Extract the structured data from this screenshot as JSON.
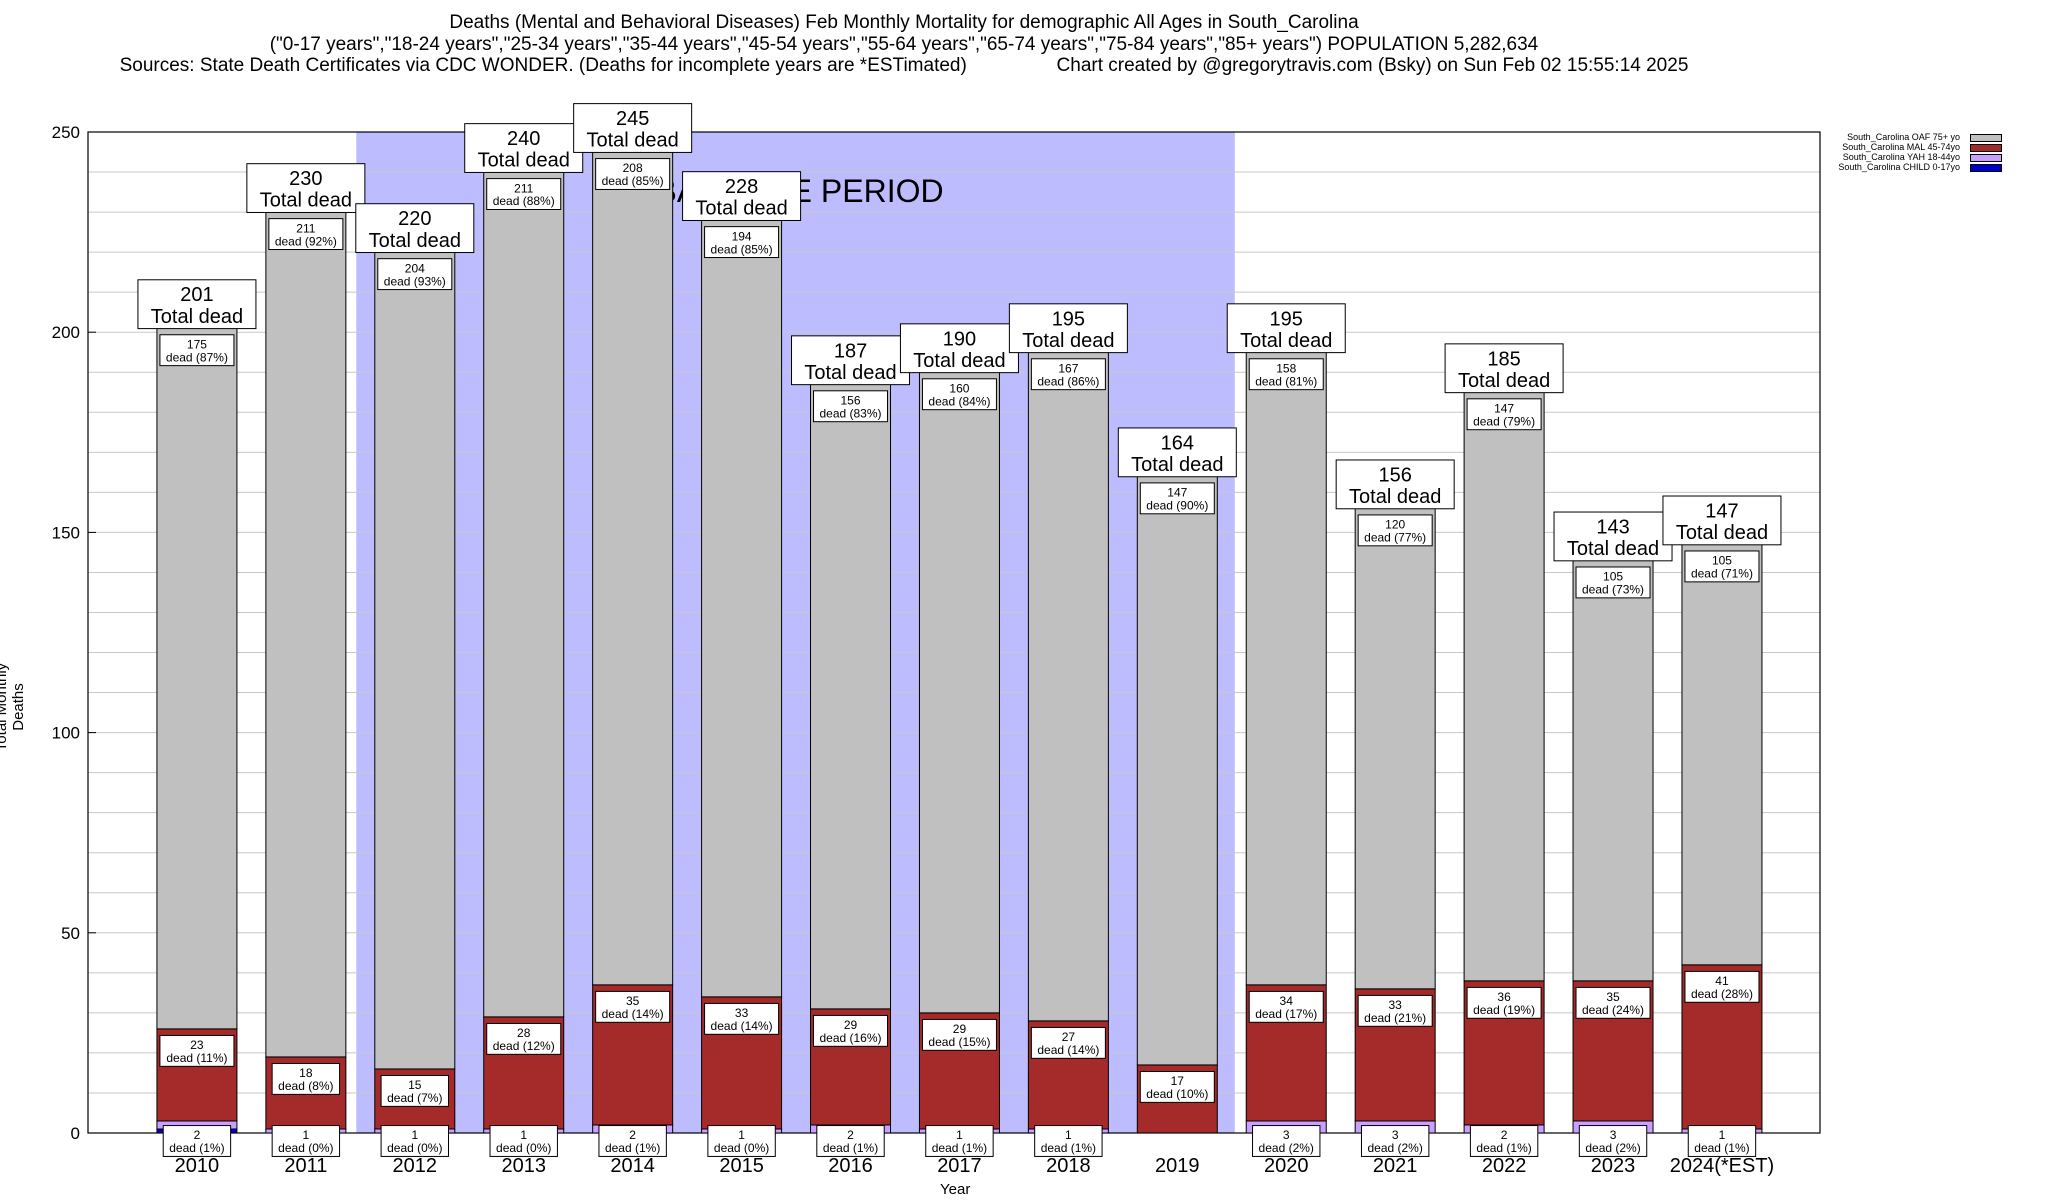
{
  "title": {
    "line1": "Deaths (Mental and Behavioral Diseases) Feb Monthly Mortality for demographic All Ages in South_Carolina",
    "line2": "(\"0-17 years\",\"18-24 years\",\"25-34 years\",\"35-44 years\",\"45-54 years\",\"55-64 years\",\"65-74 years\",\"75-84 years\",\"85+ years\") POPULATION 5,282,634",
    "line3": "Sources: State Death Certificates via CDC WONDER. (Deaths for incomplete years are *ESTimated)                 Chart created by @gregorytravis.com (Bsky) on Sun Feb 02 15:55:14 2025"
  },
  "chart_data": {
    "type": "bar",
    "stacked": true,
    "xlabel": "Year",
    "ylabel": "Total Monthly Deaths",
    "ylim": [
      0,
      250
    ],
    "yticks": [
      0,
      50,
      100,
      150,
      200,
      250
    ],
    "grid": "horizontal",
    "legend_position": "top-right",
    "baseline_label": "BASELINE PERIOD",
    "baseline_range": [
      "2012",
      "2019"
    ],
    "categories": [
      "2010",
      "2011",
      "2012",
      "2013",
      "2014",
      "2015",
      "2016",
      "2017",
      "2018",
      "2019",
      "2020",
      "2021",
      "2022",
      "2023",
      "2024(*EST)"
    ],
    "totals": [
      201,
      230,
      220,
      240,
      245,
      228,
      187,
      190,
      195,
      164,
      195,
      156,
      185,
      143,
      147
    ],
    "total_label": "Total dead",
    "series": [
      {
        "name": "South_Carolina CHILD 0-17yo",
        "color": "#0000cc",
        "values": [
          1,
          0,
          0,
          0,
          0,
          0,
          0,
          0,
          0,
          0,
          0,
          0,
          0,
          0,
          0
        ]
      },
      {
        "name": "South_Carolina YAH 18-44yo",
        "color": "#c8a0ff",
        "values": [
          2,
          1,
          1,
          1,
          2,
          1,
          2,
          1,
          1,
          0,
          3,
          3,
          2,
          3,
          1
        ],
        "labels": [
          "2\ndead (1%)",
          "1\ndead (0%)",
          "1\ndead (0%)",
          "1\ndead (0%)",
          "2\ndead (1%)",
          "1\ndead (0%)",
          "2\ndead (1%)",
          "1\ndead (1%)",
          "1\ndead (1%)",
          "",
          "3\ndead (2%)",
          "3\ndead (2%)",
          "2\ndead (1%)",
          "3\ndead (2%)",
          "1\ndead (1%)"
        ]
      },
      {
        "name": "South_Carolina MAL 45-74yo",
        "color": "#a52a2a",
        "values": [
          23,
          18,
          15,
          28,
          35,
          33,
          29,
          29,
          27,
          17,
          34,
          33,
          36,
          35,
          41
        ],
        "labels": [
          "23\ndead (11%)",
          "18\ndead (8%)",
          "15\ndead (7%)",
          "28\ndead (12%)",
          "35\ndead (14%)",
          "33\ndead (14%)",
          "29\ndead (16%)",
          "29\ndead (15%)",
          "27\ndead (14%)",
          "17\ndead (10%)",
          "34\ndead (17%)",
          "33\ndead (21%)",
          "36\ndead (19%)",
          "35\ndead (24%)",
          "41\ndead (28%)"
        ]
      },
      {
        "name": "South_Carolina OAF 75+ yo",
        "color": "#c0c0c0",
        "values": [
          175,
          211,
          204,
          211,
          208,
          194,
          156,
          160,
          167,
          147,
          158,
          120,
          147,
          105,
          105
        ],
        "labels": [
          "175\ndead (87%)",
          "211\ndead (92%)",
          "204\ndead (93%)",
          "211\ndead (88%)",
          "208\ndead (85%)",
          "194\ndead (85%)",
          "156\ndead (83%)",
          "160\ndead (84%)",
          "167\ndead (86%)",
          "147\ndead (90%)",
          "158\ndead (81%)",
          "120\ndead (77%)",
          "147\ndead (79%)",
          "105\ndead (73%)",
          "105\ndead (71%)"
        ]
      }
    ]
  },
  "legend": [
    {
      "label": "South_Carolina OAF 75+ yo",
      "color": "#c0c0c0"
    },
    {
      "label": "South_Carolina MAL 45-74yo",
      "color": "#a52a2a"
    },
    {
      "label": "South_Carolina YAH 18-44yo",
      "color": "#c8a0ff"
    },
    {
      "label": "South_Carolina CHILD 0-17yo",
      "color": "#0000cc"
    }
  ]
}
